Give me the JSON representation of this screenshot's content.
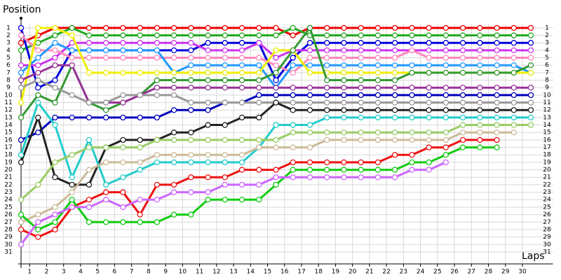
{
  "chart_data": {
    "type": "line",
    "y_label": "Position",
    "x_label": "Laps",
    "x": [
      0,
      1,
      2,
      3,
      4,
      5,
      6,
      7,
      8,
      9,
      10,
      11,
      12,
      13,
      14,
      15,
      16,
      17,
      18,
      19,
      20,
      21,
      22,
      23,
      24,
      25,
      26,
      27,
      28,
      29,
      30
    ],
    "xlim": [
      0,
      31.3
    ],
    "xticks": [
      1,
      2,
      3,
      4,
      5,
      6,
      7,
      8,
      9,
      10,
      11,
      12,
      13,
      14,
      15,
      16,
      17,
      18,
      19,
      20,
      21,
      22,
      23,
      24,
      25,
      26,
      27,
      28,
      29,
      30
    ],
    "ylim": [
      32.6,
      -0.3
    ],
    "yticks": [
      1,
      2,
      3,
      4,
      5,
      6,
      7,
      8,
      9,
      10,
      11,
      12,
      13,
      14,
      15,
      16,
      17,
      18,
      19,
      20,
      21,
      22,
      23,
      24,
      25,
      26,
      27,
      28,
      29,
      30,
      31
    ],
    "grid": true,
    "series": [
      {
        "color": "#ee0000",
        "values": [
          3,
          2,
          1,
          1,
          1,
          1,
          1,
          1,
          1,
          1,
          1,
          1,
          1,
          1,
          1,
          1,
          2,
          1,
          1,
          1,
          1,
          1,
          1,
          1,
          1,
          1,
          1,
          1,
          1,
          1,
          1
        ]
      },
      {
        "color": "#22aa22",
        "values": [
          4,
          3,
          2,
          1,
          2,
          2,
          2,
          2,
          2,
          2,
          2,
          2,
          2,
          2,
          2,
          2,
          1,
          2,
          2,
          2,
          2,
          2,
          2,
          2,
          2,
          2,
          2,
          2,
          2,
          2,
          2
        ]
      },
      {
        "color": "#0000dd",
        "values": [
          1,
          9,
          8,
          4,
          4,
          4,
          4,
          4,
          4,
          4,
          4,
          3,
          3,
          3,
          3,
          8,
          5,
          3,
          3,
          3,
          3,
          3,
          3,
          3,
          3,
          3,
          3,
          3,
          3,
          3,
          3
        ]
      },
      {
        "color": "#cc33ee",
        "values": [
          6,
          6,
          5,
          3,
          3,
          3,
          3,
          3,
          3,
          3,
          3,
          4,
          4,
          4,
          3,
          5,
          4,
          4,
          4,
          4,
          4,
          4,
          4,
          4,
          4,
          4,
          4,
          4,
          4,
          4,
          4
        ]
      },
      {
        "color": "#ff88bb",
        "values": [
          2,
          4,
          4,
          5,
          5,
          5,
          5,
          5,
          5,
          5,
          5,
          5,
          5,
          5,
          5,
          6,
          7,
          5,
          5,
          5,
          5,
          5,
          5,
          4,
          5,
          5,
          5,
          5,
          5,
          5,
          5
        ]
      },
      {
        "color": "#2299ff",
        "values": [
          7,
          5,
          3,
          4,
          4,
          4,
          4,
          4,
          4,
          7,
          6,
          6,
          6,
          6,
          6,
          9,
          6,
          6,
          6,
          6,
          6,
          6,
          6,
          6,
          6,
          6,
          6,
          6,
          6,
          6,
          7
        ]
      },
      {
        "color": "#eeee00",
        "values": [
          11,
          1,
          1,
          2,
          7,
          7,
          7,
          7,
          7,
          7,
          7,
          7,
          7,
          7,
          7,
          4,
          4,
          7,
          7,
          7,
          7,
          7,
          7,
          7,
          7,
          7,
          7,
          7,
          7,
          7,
          7
        ]
      },
      {
        "color": "#339933",
        "values": [
          13,
          10,
          11,
          6,
          11,
          12,
          11,
          10,
          8,
          8,
          8,
          8,
          8,
          8,
          8,
          7,
          4,
          1,
          8,
          8,
          8,
          8,
          8,
          7,
          7,
          7,
          7,
          7,
          7,
          7,
          6
        ]
      },
      {
        "color": "#993399",
        "values": [
          8,
          7,
          6,
          6,
          11,
          11,
          11,
          10,
          9,
          9,
          9,
          9,
          9,
          9,
          9,
          9,
          9,
          9,
          9,
          9,
          9,
          9,
          9,
          9,
          9,
          9,
          9,
          9,
          9,
          9,
          9
        ]
      },
      {
        "color": "#0000bb",
        "values": [
          16,
          15,
          13,
          13,
          13,
          13,
          13,
          13,
          13,
          12,
          12,
          12,
          11,
          11,
          10,
          10,
          10,
          10,
          10,
          10,
          10,
          10,
          10,
          10,
          10,
          10,
          10,
          10,
          10,
          10,
          10
        ]
      },
      {
        "color": "#999999",
        "values": [
          9,
          8,
          9,
          10,
          11,
          11,
          10,
          10,
          10,
          10,
          11,
          11,
          11,
          11,
          11,
          11,
          11,
          11,
          11,
          11,
          11,
          11,
          11,
          11,
          11,
          11,
          11,
          11,
          11,
          11,
          11
        ]
      },
      {
        "color": "#222222",
        "values": [
          19,
          13,
          21,
          22,
          22,
          17,
          16,
          16,
          16,
          15,
          15,
          14,
          14,
          13,
          13,
          11,
          12,
          12,
          12,
          12,
          12,
          12,
          12,
          12,
          12,
          12,
          12,
          12,
          12,
          12,
          12
        ]
      },
      {
        "color": "#22cccc",
        "values": [
          18,
          11,
          14,
          21,
          16,
          22,
          21,
          20,
          19,
          19,
          19,
          19,
          19,
          19,
          17,
          14,
          14,
          14,
          13,
          13,
          13,
          13,
          13,
          13,
          13,
          13,
          13,
          13,
          13,
          13,
          13
        ]
      },
      {
        "color": "#99cc66",
        "values": [
          24,
          22,
          19,
          18,
          17,
          17,
          17,
          17,
          16,
          16,
          16,
          16,
          16,
          16,
          16,
          16,
          15,
          15,
          15,
          15,
          15,
          15,
          15,
          15,
          15,
          15,
          14,
          14,
          14,
          14,
          14
        ]
      },
      {
        "color": "#ccbb99",
        "values": [
          27,
          26,
          25,
          23,
          20,
          19,
          19,
          19,
          18,
          18,
          18,
          18,
          18,
          18,
          17,
          17,
          17,
          17,
          16,
          16,
          16,
          16,
          16,
          16,
          16,
          16,
          15,
          15,
          15,
          15,
          null
        ]
      },
      {
        "color": "#ee1111",
        "values": [
          28,
          29,
          28,
          25,
          24,
          23,
          23,
          26,
          22,
          22,
          21,
          21,
          21,
          20,
          20,
          20,
          19,
          19,
          19,
          19,
          19,
          19,
          18,
          18,
          17,
          17,
          16,
          16,
          16,
          null,
          null
        ]
      },
      {
        "color": "#11cc11",
        "values": [
          26,
          28,
          27,
          24,
          27,
          27,
          27,
          27,
          27,
          26,
          26,
          24,
          24,
          24,
          24,
          22,
          20,
          20,
          20,
          20,
          20,
          20,
          20,
          19,
          19,
          18,
          17,
          17,
          17,
          null,
          null
        ]
      },
      {
        "color": "#cc66ff",
        "values": [
          30,
          27,
          26,
          25,
          25,
          24,
          25,
          24,
          24,
          23,
          23,
          23,
          22,
          22,
          22,
          21,
          21,
          21,
          21,
          21,
          21,
          21,
          21,
          20,
          20,
          19,
          null,
          null,
          null,
          null,
          null
        ]
      }
    ]
  }
}
